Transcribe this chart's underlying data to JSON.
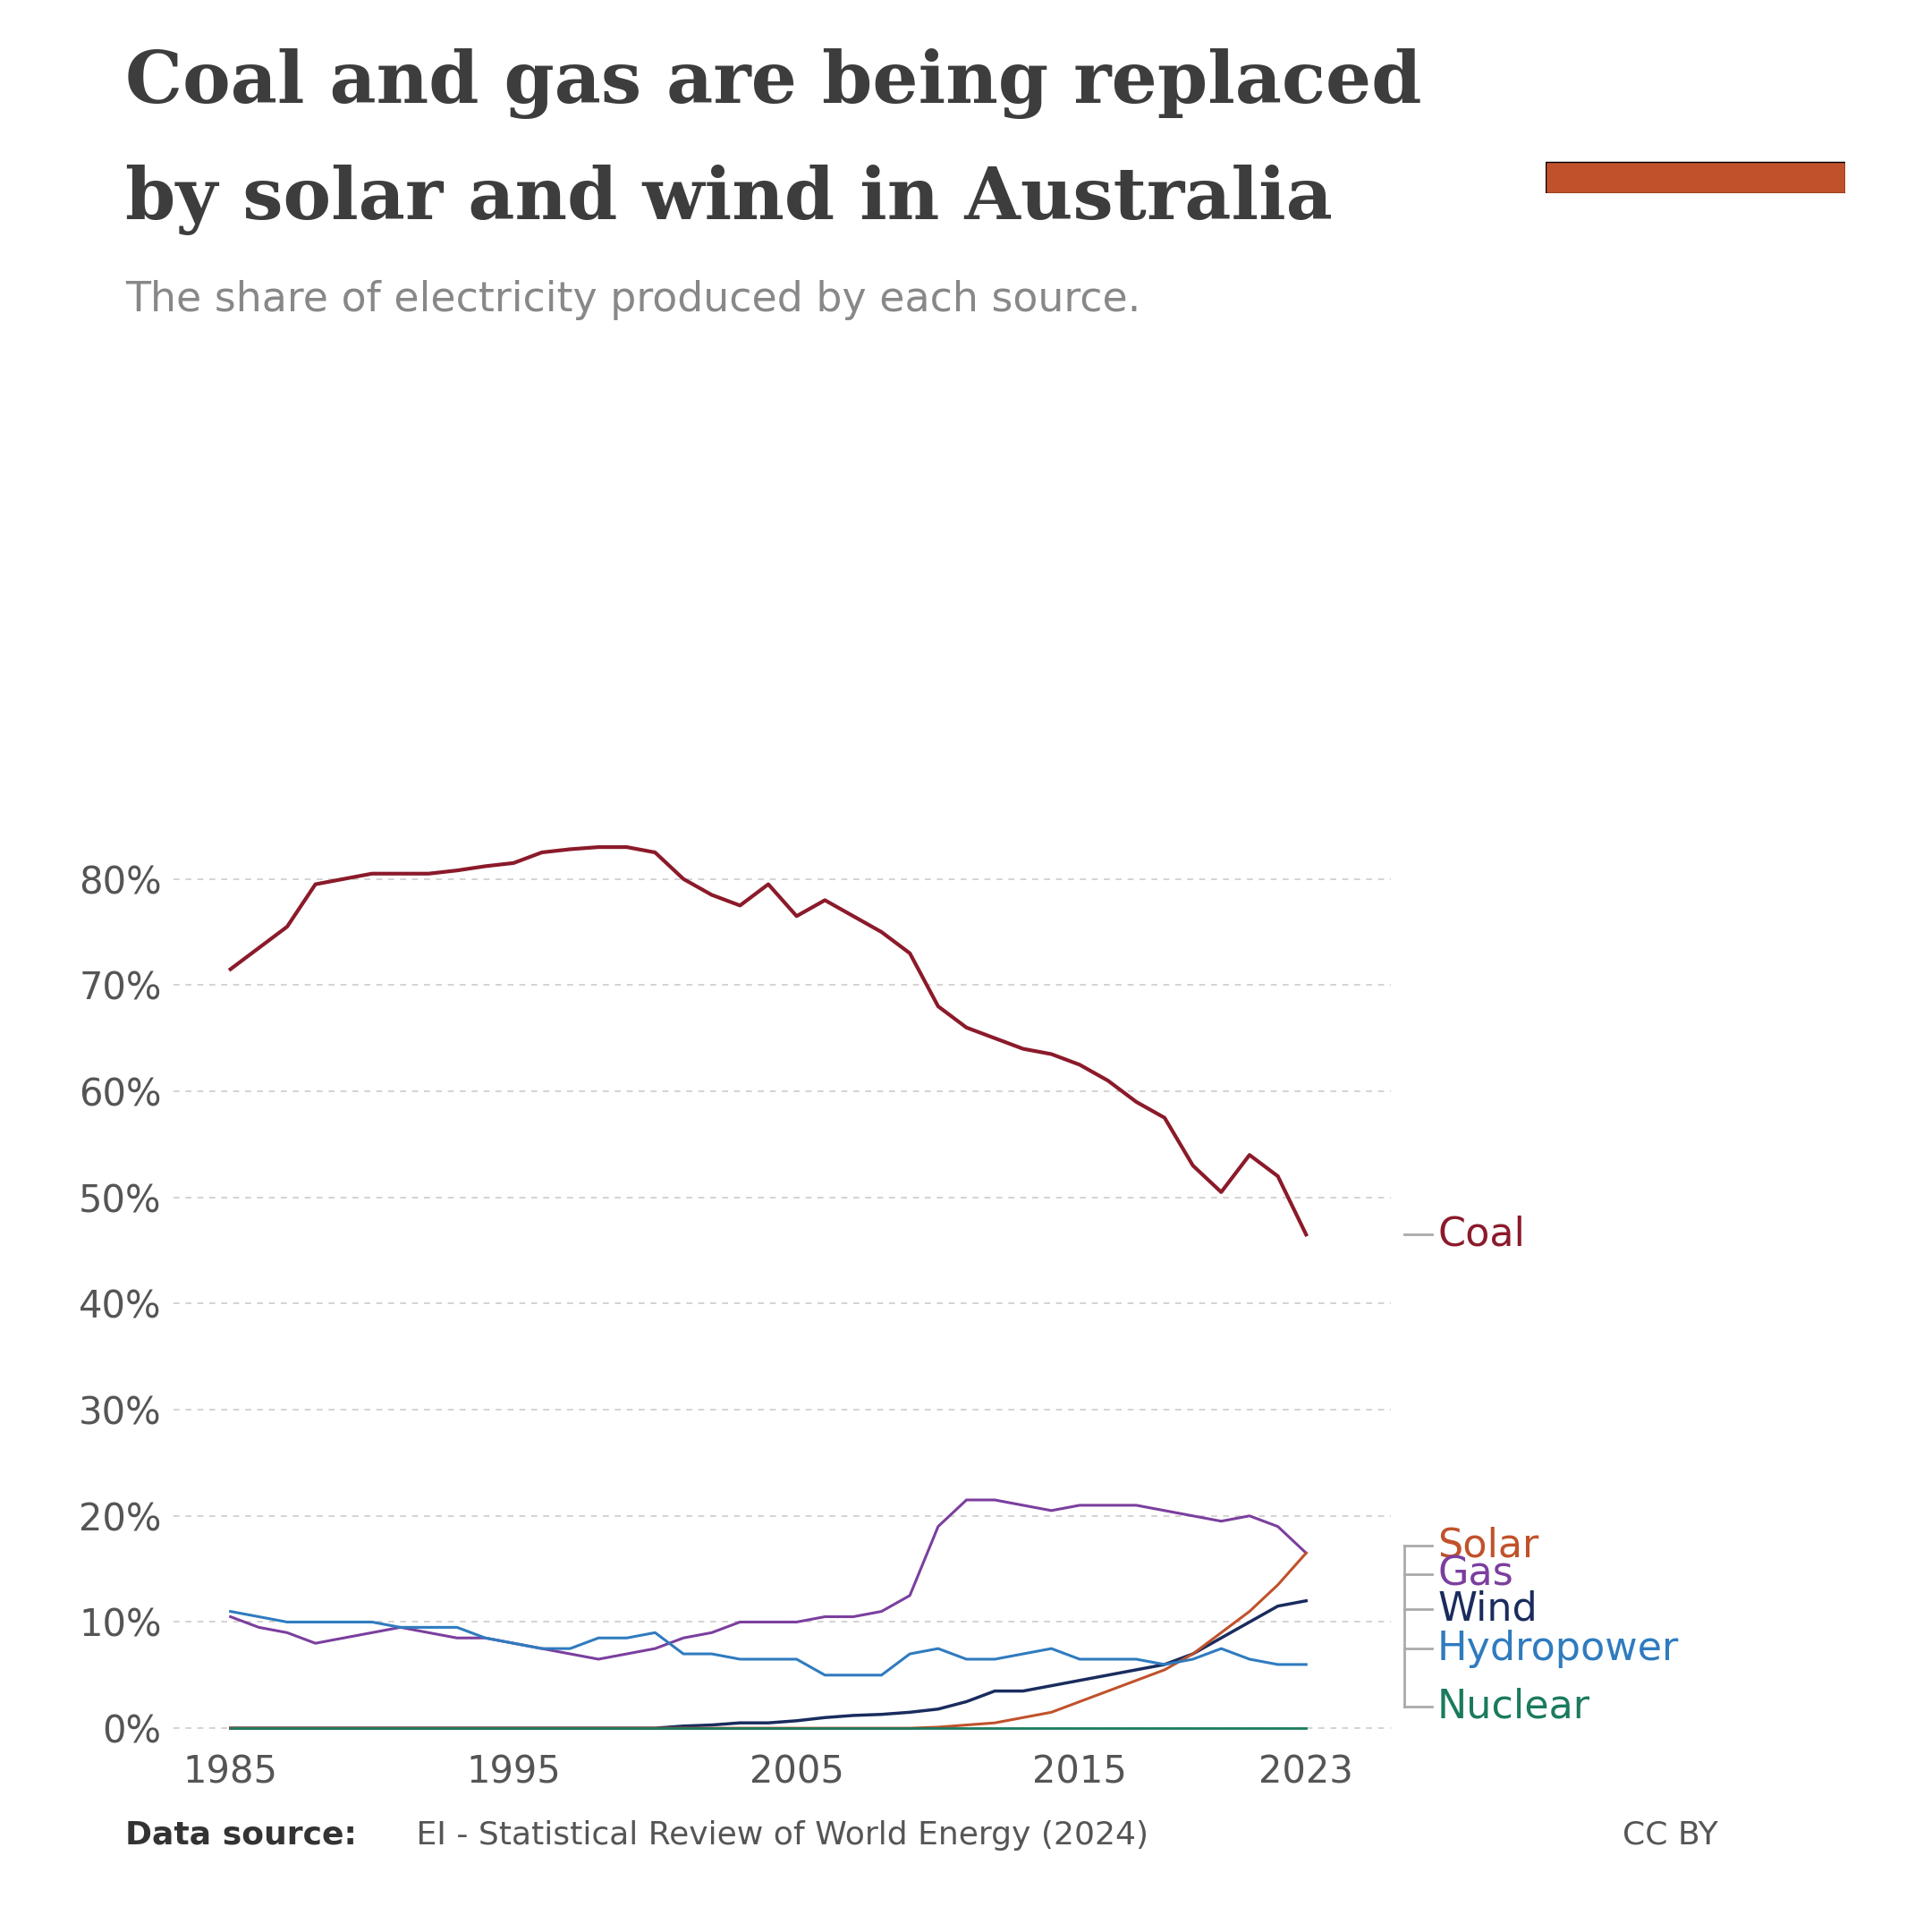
{
  "title_line1": "Coal and gas are being replaced",
  "title_line2": "by solar and wind in Australia",
  "subtitle": "The share of electricity produced by each source.",
  "title_color": "#3d3d3d",
  "subtitle_color": "#888888",
  "background_color": "#ffffff",
  "datasource_bold": "Data source:",
  "datasource_rest": " EI - Statistical Review of World Energy (2024)",
  "cc": "CC BY",
  "years": [
    1985,
    1986,
    1987,
    1988,
    1989,
    1990,
    1991,
    1992,
    1993,
    1994,
    1995,
    1996,
    1997,
    1998,
    1999,
    2000,
    2001,
    2002,
    2003,
    2004,
    2005,
    2006,
    2007,
    2008,
    2009,
    2010,
    2011,
    2012,
    2013,
    2014,
    2015,
    2016,
    2017,
    2018,
    2019,
    2020,
    2021,
    2022,
    2023
  ],
  "coal": [
    71.5,
    73.5,
    75.5,
    79.5,
    80.0,
    80.5,
    80.5,
    80.5,
    80.8,
    81.2,
    81.5,
    82.5,
    82.8,
    83.0,
    83.0,
    82.5,
    80.0,
    78.5,
    77.5,
    79.5,
    76.5,
    78.0,
    76.5,
    75.0,
    73.0,
    68.0,
    66.0,
    65.0,
    64.0,
    63.5,
    62.5,
    61.0,
    59.0,
    57.5,
    53.0,
    50.5,
    54.0,
    52.0,
    46.5
  ],
  "coal_color": "#8b1a2a",
  "gas": [
    10.5,
    9.5,
    9.0,
    8.0,
    8.5,
    9.0,
    9.5,
    9.0,
    8.5,
    8.5,
    8.0,
    7.5,
    7.0,
    6.5,
    7.0,
    7.5,
    8.5,
    9.0,
    10.0,
    10.0,
    10.0,
    10.5,
    10.5,
    11.0,
    12.5,
    19.0,
    21.5,
    21.5,
    21.0,
    20.5,
    21.0,
    21.0,
    21.0,
    20.5,
    20.0,
    19.5,
    20.0,
    19.0,
    16.5
  ],
  "gas_color": "#7b3f9e",
  "wind": [
    0.0,
    0.0,
    0.0,
    0.0,
    0.0,
    0.0,
    0.0,
    0.0,
    0.0,
    0.0,
    0.0,
    0.0,
    0.0,
    0.0,
    0.0,
    0.0,
    0.2,
    0.3,
    0.5,
    0.5,
    0.7,
    1.0,
    1.2,
    1.3,
    1.5,
    1.8,
    2.5,
    3.5,
    3.5,
    4.0,
    4.5,
    5.0,
    5.5,
    6.0,
    7.0,
    8.5,
    10.0,
    11.5,
    12.0
  ],
  "wind_color": "#1a2c5e",
  "solar": [
    0.0,
    0.0,
    0.0,
    0.0,
    0.0,
    0.0,
    0.0,
    0.0,
    0.0,
    0.0,
    0.0,
    0.0,
    0.0,
    0.0,
    0.0,
    0.0,
    0.0,
    0.0,
    0.0,
    0.0,
    0.0,
    0.0,
    0.0,
    0.0,
    0.0,
    0.1,
    0.3,
    0.5,
    1.0,
    1.5,
    2.5,
    3.5,
    4.5,
    5.5,
    7.0,
    9.0,
    11.0,
    13.5,
    16.5
  ],
  "solar_color": "#c0522b",
  "hydro": [
    11.0,
    10.5,
    10.0,
    10.0,
    10.0,
    10.0,
    9.5,
    9.5,
    9.5,
    8.5,
    8.0,
    7.5,
    7.5,
    8.5,
    8.5,
    9.0,
    7.0,
    7.0,
    6.5,
    6.5,
    6.5,
    5.0,
    5.0,
    5.0,
    7.0,
    7.5,
    6.5,
    6.5,
    7.0,
    7.5,
    6.5,
    6.5,
    6.5,
    6.0,
    6.5,
    7.5,
    6.5,
    6.0,
    6.0
  ],
  "hydro_color": "#2f7bbf",
  "nuclear": [
    0.0,
    0.0,
    0.0,
    0.0,
    0.0,
    0.0,
    0.0,
    0.0,
    0.0,
    0.0,
    0.0,
    0.0,
    0.0,
    0.0,
    0.0,
    0.0,
    0.0,
    0.0,
    0.0,
    0.0,
    0.0,
    0.0,
    0.0,
    0.0,
    0.0,
    0.0,
    0.0,
    0.0,
    0.0,
    0.0,
    0.0,
    0.0,
    0.0,
    0.0,
    0.0,
    0.0,
    0.0,
    0.0,
    0.0
  ],
  "nuclear_color": "#1a7a5e",
  "owid_box_color": "#1a2c5e",
  "owid_red": "#c0522b",
  "yticks": [
    0,
    10,
    20,
    30,
    40,
    50,
    60,
    70,
    80
  ],
  "ylim": [
    -1,
    90
  ],
  "xlim": [
    1983,
    2026
  ]
}
